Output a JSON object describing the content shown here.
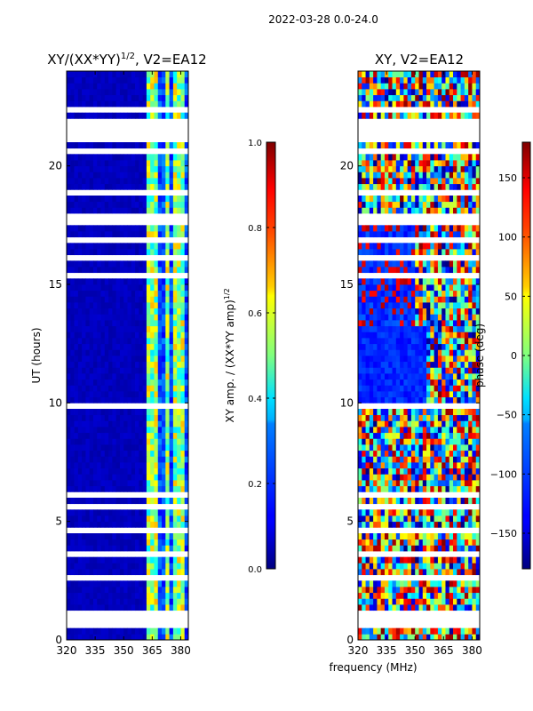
{
  "suptitle": "2022-03-28 0.0-24.0",
  "xlabel": "frequency (MHz)",
  "chart_data": [
    {
      "type": "heatmap",
      "title": "XY/(XX*YY)",
      "title_sup": "1/2",
      "title_suffix": ", V2=EA12",
      "xlabel": "",
      "ylabel": "UT (hours)",
      "xlim": [
        320,
        384
      ],
      "ylim": [
        0,
        24
      ],
      "x_ticks": [
        320,
        335,
        350,
        365,
        380
      ],
      "y_ticks": [
        0,
        5,
        10,
        15,
        20
      ],
      "colormap": "jet",
      "colorbar": {
        "label": "XY amp. / (XX*YY amp)",
        "label_sup": "1/2",
        "range": [
          0.0,
          1.0
        ],
        "ticks": [
          0.0,
          0.2,
          0.4,
          0.6,
          0.8,
          1.0
        ],
        "tick_labels": [
          "0.0",
          "0.2",
          "0.4",
          "0.6",
          "0.8",
          "1.0"
        ]
      },
      "bright_columns_mhz": [
        [
          362.5,
          365.5
        ],
        [
          366.5,
          368.5
        ],
        [
          371.5,
          373.5
        ],
        [
          377,
          379.5
        ],
        [
          380.5,
          381.5
        ]
      ],
      "blank_ut_bands": [
        [
          0.4,
          0.5
        ],
        [
          0.6,
          1.2
        ],
        [
          1.4,
          1.5
        ],
        [
          2.0,
          2.1
        ],
        [
          2.6,
          2.7
        ],
        [
          3.3,
          3.35
        ],
        [
          3.55,
          3.7
        ],
        [
          4.6,
          4.65
        ],
        [
          5.6,
          5.7
        ],
        [
          6.1,
          6.35
        ],
        [
          9.65,
          9.95
        ],
        [
          13.2,
          13.3
        ],
        [
          13.7,
          13.8
        ],
        [
          14.4,
          14.5
        ],
        [
          15.3,
          15.4
        ],
        [
          16.1,
          16.2
        ],
        [
          16.8,
          16.9
        ],
        [
          17.6,
          18.0
        ],
        [
          18.8,
          18.9
        ],
        [
          19.4,
          19.5
        ],
        [
          20.0,
          20.1
        ],
        [
          20.6,
          20.7
        ],
        [
          21.0,
          22.0
        ],
        [
          22.3,
          22.5
        ],
        [
          22.9,
          23.1
        ],
        [
          23.5,
          23.6
        ]
      ]
    },
    {
      "type": "heatmap",
      "title": "XY, V2=EA12",
      "xlabel": "frequency (MHz)",
      "ylabel": "",
      "xlim": [
        320,
        384
      ],
      "ylim": [
        0,
        24
      ],
      "x_ticks": [
        320,
        335,
        350,
        365,
        380
      ],
      "y_ticks": [
        0,
        5,
        10,
        15,
        20
      ],
      "colormap": "jet",
      "colorbar": {
        "label": "phase (deg)",
        "range": [
          -180,
          180
        ],
        "ticks": [
          -150,
          -100,
          -50,
          0,
          50,
          100,
          150
        ],
        "tick_labels": [
          "−150",
          "−100",
          "−50",
          "0",
          "50",
          "100",
          "150"
        ]
      },
      "blank_ut_bands": [
        [
          0.4,
          0.5
        ],
        [
          0.6,
          1.2
        ],
        [
          1.4,
          1.5
        ],
        [
          2.0,
          2.1
        ],
        [
          2.6,
          2.7
        ],
        [
          3.3,
          3.35
        ],
        [
          3.55,
          3.7
        ],
        [
          4.6,
          4.65
        ],
        [
          5.6,
          5.7
        ],
        [
          6.1,
          6.35
        ],
        [
          9.65,
          9.95
        ],
        [
          13.2,
          13.3
        ],
        [
          13.7,
          13.8
        ],
        [
          14.4,
          14.5
        ],
        [
          15.3,
          15.4
        ],
        [
          16.1,
          16.2
        ],
        [
          16.8,
          16.9
        ],
        [
          17.6,
          18.0
        ],
        [
          18.8,
          18.9
        ],
        [
          19.4,
          19.5
        ],
        [
          20.0,
          20.1
        ],
        [
          20.6,
          20.7
        ],
        [
          21.0,
          22.0
        ],
        [
          22.3,
          22.5
        ],
        [
          22.9,
          23.1
        ],
        [
          23.5,
          23.6
        ]
      ]
    }
  ]
}
